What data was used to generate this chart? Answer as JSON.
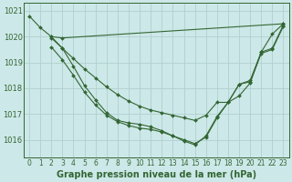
{
  "background_color": "#cde8e8",
  "grid_color": "#b0d0d0",
  "line_color": "#336633",
  "marker_color": "#336633",
  "title": "Graphe pression niveau de la mer (hPa)",
  "title_fontsize": 7,
  "ylabel_fontsize": 6,
  "xlabel_fontsize": 5.5,
  "xlim": [
    -0.5,
    23.5
  ],
  "ylim": [
    1015.3,
    1021.3
  ],
  "yticks": [
    1016,
    1017,
    1018,
    1019,
    1020,
    1021
  ],
  "xticks": [
    0,
    1,
    2,
    3,
    4,
    5,
    6,
    7,
    8,
    9,
    10,
    11,
    12,
    13,
    14,
    15,
    16,
    17,
    18,
    19,
    20,
    21,
    22,
    23
  ],
  "series": [
    {
      "x": [
        0,
        1,
        2,
        3,
        23
      ],
      "y": [
        1020.8,
        1020.35,
        1020.0,
        1019.95,
        1020.5
      ]
    },
    {
      "x": [
        2,
        3,
        4,
        5,
        6,
        7,
        8,
        9,
        10,
        11,
        12,
        13,
        14,
        15,
        16,
        17,
        18,
        19,
        20,
        21,
        22,
        23
      ],
      "y": [
        1019.95,
        1019.55,
        1019.15,
        1018.75,
        1018.4,
        1018.05,
        1017.75,
        1017.5,
        1017.3,
        1017.15,
        1017.05,
        1016.95,
        1016.85,
        1016.75,
        1016.95,
        1017.45,
        1017.45,
        1017.7,
        1018.2,
        1019.4,
        1020.1,
        1020.5
      ]
    },
    {
      "x": [
        2,
        3,
        4,
        5,
        6,
        7,
        8,
        9,
        10,
        11,
        12,
        13,
        14,
        15,
        16,
        17,
        18,
        19,
        20,
        21,
        22,
        23
      ],
      "y": [
        1019.6,
        1019.1,
        1018.5,
        1017.85,
        1017.35,
        1016.95,
        1016.7,
        1016.55,
        1016.45,
        1016.4,
        1016.3,
        1016.15,
        1016.0,
        1015.85,
        1016.1,
        1016.85,
        1017.45,
        1018.15,
        1018.25,
        1019.35,
        1019.5,
        1020.4
      ]
    },
    {
      "x": [
        2,
        3,
        4,
        5,
        6,
        7,
        8,
        9,
        10,
        11,
        12,
        13,
        14,
        15,
        16,
        17,
        18,
        19,
        20,
        21,
        22,
        23
      ],
      "y": [
        1020.0,
        1019.55,
        1018.85,
        1018.1,
        1017.55,
        1017.05,
        1016.75,
        1016.65,
        1016.6,
        1016.5,
        1016.35,
        1016.15,
        1015.95,
        1015.8,
        1016.15,
        1016.9,
        1017.45,
        1018.15,
        1018.3,
        1019.4,
        1019.55,
        1020.45
      ]
    }
  ]
}
